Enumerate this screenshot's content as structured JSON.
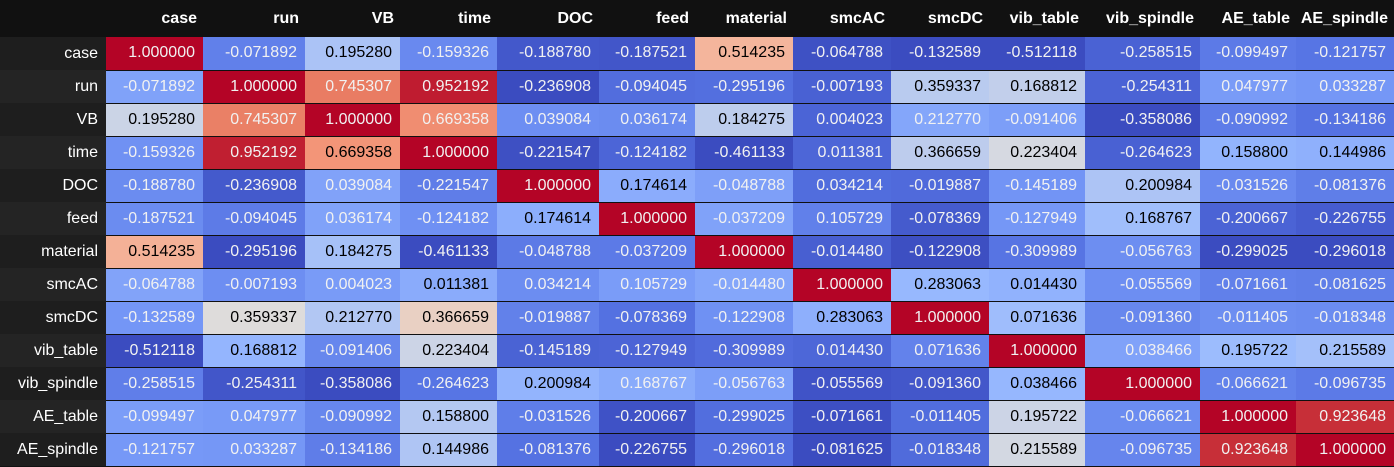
{
  "table": {
    "columns": [
      "case",
      "run",
      "VB",
      "time",
      "DOC",
      "feed",
      "material",
      "smcAC",
      "smcDC",
      "vib_table",
      "vib_spindle",
      "AE_table",
      "AE_spindle"
    ],
    "rows": [
      {
        "label": "case",
        "values": [
          "1.000000",
          "-0.071892",
          "0.195280",
          "-0.159326",
          "-0.188780",
          "-0.187521",
          "0.514235",
          "-0.064788",
          "-0.132589",
          "-0.512118",
          "-0.258515",
          "-0.099497",
          "-0.121757"
        ]
      },
      {
        "label": "run",
        "values": [
          "-0.071892",
          "1.000000",
          "0.745307",
          "0.952192",
          "-0.236908",
          "-0.094045",
          "-0.295196",
          "-0.007193",
          "0.359337",
          "0.168812",
          "-0.254311",
          "0.047977",
          "0.033287"
        ]
      },
      {
        "label": "VB",
        "values": [
          "0.195280",
          "0.745307",
          "1.000000",
          "0.669358",
          "0.039084",
          "0.036174",
          "0.184275",
          "0.004023",
          "0.212770",
          "-0.091406",
          "-0.358086",
          "-0.090992",
          "-0.134186"
        ]
      },
      {
        "label": "time",
        "values": [
          "-0.159326",
          "0.952192",
          "0.669358",
          "1.000000",
          "-0.221547",
          "-0.124182",
          "-0.461133",
          "0.011381",
          "0.366659",
          "0.223404",
          "-0.264623",
          "0.158800",
          "0.144986"
        ]
      },
      {
        "label": "DOC",
        "values": [
          "-0.188780",
          "-0.236908",
          "0.039084",
          "-0.221547",
          "1.000000",
          "0.174614",
          "-0.048788",
          "0.034214",
          "-0.019887",
          "-0.145189",
          "0.200984",
          "-0.031526",
          "-0.081376"
        ]
      },
      {
        "label": "feed",
        "values": [
          "-0.187521",
          "-0.094045",
          "0.036174",
          "-0.124182",
          "0.174614",
          "1.000000",
          "-0.037209",
          "0.105729",
          "-0.078369",
          "-0.127949",
          "0.168767",
          "-0.200667",
          "-0.226755"
        ]
      },
      {
        "label": "material",
        "values": [
          "0.514235",
          "-0.295196",
          "0.184275",
          "-0.461133",
          "-0.048788",
          "-0.037209",
          "1.000000",
          "-0.014480",
          "-0.122908",
          "-0.309989",
          "-0.056763",
          "-0.299025",
          "-0.296018"
        ]
      },
      {
        "label": "smcAC",
        "values": [
          "-0.064788",
          "-0.007193",
          "0.004023",
          "0.011381",
          "0.034214",
          "0.105729",
          "-0.014480",
          "1.000000",
          "0.283063",
          "0.014430",
          "-0.055569",
          "-0.071661",
          "-0.081625"
        ]
      },
      {
        "label": "smcDC",
        "values": [
          "-0.132589",
          "0.359337",
          "0.212770",
          "0.366659",
          "-0.019887",
          "-0.078369",
          "-0.122908",
          "0.283063",
          "1.000000",
          "0.071636",
          "-0.091360",
          "-0.011405",
          "-0.018348"
        ]
      },
      {
        "label": "vib_table",
        "values": [
          "-0.512118",
          "0.168812",
          "-0.091406",
          "0.223404",
          "-0.145189",
          "-0.127949",
          "-0.309989",
          "0.014430",
          "0.071636",
          "1.000000",
          "0.038466",
          "0.195722",
          "0.215589"
        ]
      },
      {
        "label": "vib_spindle",
        "values": [
          "-0.258515",
          "-0.254311",
          "-0.358086",
          "-0.264623",
          "0.200984",
          "0.168767",
          "-0.056763",
          "-0.055569",
          "-0.091360",
          "0.038466",
          "1.000000",
          "-0.066621",
          "-0.096735"
        ]
      },
      {
        "label": "AE_table",
        "values": [
          "-0.099497",
          "0.047977",
          "-0.090992",
          "0.158800",
          "-0.031526",
          "-0.200667",
          "-0.299025",
          "-0.071661",
          "-0.011405",
          "0.195722",
          "-0.066621",
          "1.000000",
          "0.923648"
        ]
      },
      {
        "label": "AE_spindle",
        "values": [
          "-0.121757",
          "0.033287",
          "-0.134186",
          "0.144986",
          "-0.081376",
          "-0.226755",
          "-0.296018",
          "-0.081625",
          "-0.018348",
          "0.215589",
          "-0.096735",
          "0.923648",
          "1.000000"
        ]
      }
    ]
  },
  "colormap": {
    "name": "coolwarm",
    "low": "#3b4cc0",
    "mid": "#dddddd",
    "high": "#b40426"
  }
}
